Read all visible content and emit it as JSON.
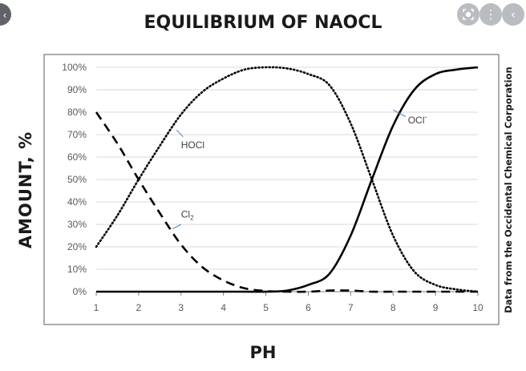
{
  "page": {
    "title": "EQUILIBRIUM OF NAOCL",
    "side_note": "Data from the Occidental Chemical Corporation"
  },
  "toolbar": {
    "lens_icon": "lens-icon",
    "more_icon": "more-vertical-icon",
    "back_icon": "chevron-left-icon"
  },
  "chart_data": {
    "type": "line",
    "title": "EQUILIBRIUM OF NAOCL",
    "xlabel": "PH",
    "ylabel": "AMOUNT, %",
    "xlim": [
      1,
      10
    ],
    "ylim": [
      0,
      100
    ],
    "xticks": [
      "1",
      "2",
      "3",
      "4",
      "5",
      "6",
      "7",
      "8",
      "9",
      "10"
    ],
    "yticks": [
      "0%",
      "10%",
      "20%",
      "30%",
      "40%",
      "50%",
      "60%",
      "70%",
      "80%",
      "90%",
      "100%"
    ],
    "grid": true,
    "legend": "none",
    "series": [
      {
        "name": "Cl2",
        "style": "dashed",
        "x": [
          1,
          1.5,
          2,
          2.5,
          3,
          3.5,
          4,
          4.5,
          5,
          5.5,
          6,
          6.5,
          7,
          7.5,
          8,
          8.5,
          9,
          9.5,
          10
        ],
        "y": [
          80,
          66,
          50,
          35,
          21,
          11,
          5,
          1.5,
          0.3,
          0,
          0,
          0.5,
          0.5,
          0,
          0,
          0,
          0,
          0,
          0
        ]
      },
      {
        "name": "HOCl",
        "style": "dotted",
        "x": [
          1,
          1.5,
          2,
          2.5,
          3,
          3.5,
          4,
          4.5,
          5,
          5.5,
          6,
          6.5,
          7,
          7.5,
          8,
          8.5,
          9,
          9.5,
          10
        ],
        "y": [
          20,
          34,
          50,
          65,
          79,
          89,
          95,
          99,
          100,
          99.5,
          97,
          92,
          75,
          50,
          25,
          9,
          3,
          1,
          0
        ]
      },
      {
        "name": "OCl-",
        "style": "solid",
        "x": [
          1,
          1.5,
          2,
          2.5,
          3,
          3.5,
          4,
          4.5,
          5,
          5.5,
          6,
          6.5,
          7,
          7.5,
          8,
          8.5,
          9,
          9.5,
          10
        ],
        "y": [
          0,
          0,
          0,
          0,
          0,
          0,
          0,
          0,
          0,
          0.5,
          3,
          8,
          25,
          50,
          74,
          90,
          97,
          99,
          100
        ]
      }
    ],
    "annotations": [
      {
        "series": "HOCl",
        "text": "HOCl"
      },
      {
        "series": "Cl2",
        "text": "Cl",
        "subscript": "2"
      },
      {
        "series": "OCl-",
        "text": "OCl",
        "superscript": "-"
      }
    ]
  }
}
